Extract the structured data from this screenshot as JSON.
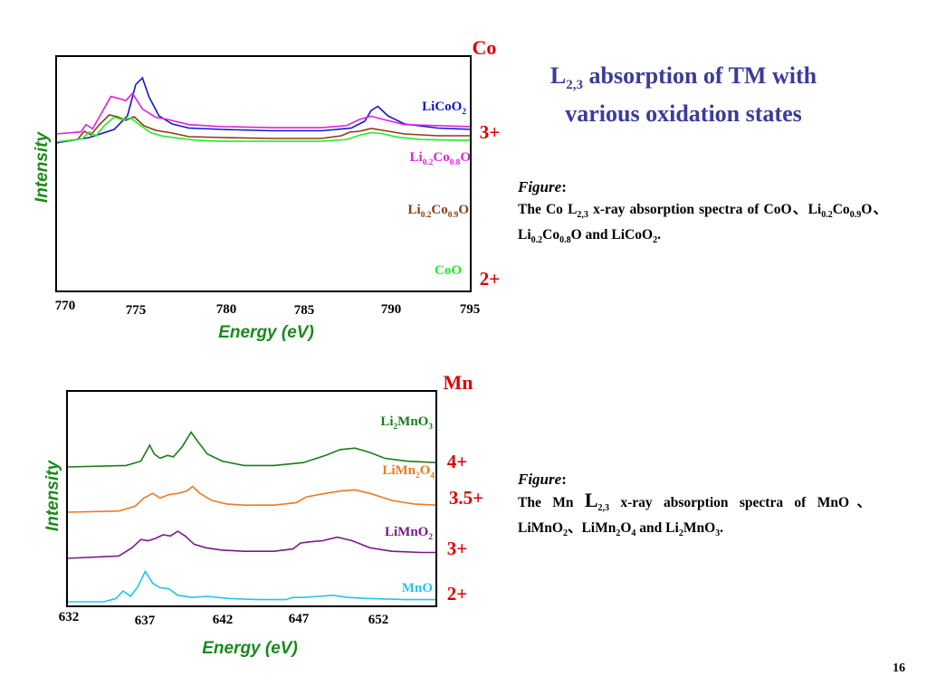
{
  "slide": {
    "title_pre": "L",
    "title_sub": "2,3",
    "title_post": " absorption of TM with",
    "title_line2": "various oxidation states",
    "page_number": "16"
  },
  "captions": [
    {
      "head": "Figure",
      "colon": ":",
      "segments": [
        "The Co L",
        "2,3",
        " x-ray absorption spectra of CoO、Li",
        "0.2",
        "Co",
        "0.9",
        "O、Li",
        "0.2",
        "Co",
        "0.8",
        "O and LiCoO",
        "2",
        "."
      ]
    },
    {
      "head": "Figure",
      "colon": ":",
      "segments": [
        "The Mn ",
        "L",
        "2,3",
        " x-ray absorption spectra of MnO、LiMnO",
        "2",
        "、LiMn",
        "2",
        "O",
        "4",
        " and Li",
        "2",
        "MnO",
        "3",
        "."
      ]
    }
  ],
  "colors": {
    "frame": "#000000",
    "axis_title": "#1a8a1a",
    "oxidation": "#e00000",
    "title": "#3b3b9e"
  },
  "chart_data": [
    {
      "type": "line",
      "element_label": "Co",
      "xlabel": "Energy  (eV)",
      "ylabel": "Intensity",
      "xlim": [
        770,
        795
      ],
      "xticks": [
        "770",
        "775",
        "780",
        "785",
        "790",
        "795"
      ],
      "oxidation_labels": [
        "3+",
        "2+"
      ],
      "series": [
        {
          "name_parts": [
            "LiCoO",
            "2"
          ],
          "color": "#1515d0",
          "x": [
            770,
            772,
            773.5,
            774.3,
            774.8,
            775.2,
            775.6,
            776.2,
            777.0,
            778.0,
            780.0,
            783.0,
            786.0,
            787.8,
            788.6,
            789.0,
            789.4,
            790.0,
            791.0,
            793.0,
            795.0
          ],
          "y": [
            0.52,
            0.56,
            0.62,
            0.72,
            0.95,
            1.0,
            0.86,
            0.72,
            0.66,
            0.63,
            0.62,
            0.61,
            0.61,
            0.63,
            0.68,
            0.76,
            0.79,
            0.72,
            0.66,
            0.63,
            0.62
          ]
        },
        {
          "name_parts": [
            "Li",
            "0.2",
            "Co",
            "0.8",
            "O"
          ],
          "color": "#e020e0",
          "x": [
            770,
            771.5,
            771.8,
            772.2,
            772.7,
            773.3,
            773.8,
            774.2,
            774.6,
            775.2,
            776.0,
            776.7,
            778.0,
            780.0,
            783.0,
            786.0,
            787.5,
            788.3,
            789.0,
            789.7,
            791.0,
            793.0,
            795.0
          ],
          "y": [
            0.36,
            0.38,
            0.45,
            0.41,
            0.55,
            0.72,
            0.7,
            0.68,
            0.75,
            0.6,
            0.52,
            0.5,
            0.45,
            0.43,
            0.42,
            0.42,
            0.44,
            0.5,
            0.53,
            0.5,
            0.45,
            0.44,
            0.43
          ]
        },
        {
          "name_parts": [
            "Li",
            "0.2",
            "Co",
            "0.9",
            "O"
          ],
          "color": "#8b3a14",
          "x": [
            770,
            771.3,
            771.7,
            772.1,
            772.6,
            773.2,
            773.7,
            774.2,
            774.7,
            775.3,
            776.0,
            777.0,
            778.0,
            780.0,
            783.0,
            786.0,
            787.2,
            787.7,
            788.3,
            789.0,
            789.7,
            791.0,
            793.0,
            795.0
          ],
          "y": [
            0.19,
            0.22,
            0.31,
            0.27,
            0.38,
            0.49,
            0.47,
            0.43,
            0.47,
            0.37,
            0.32,
            0.29,
            0.25,
            0.24,
            0.23,
            0.23,
            0.26,
            0.3,
            0.31,
            0.34,
            0.32,
            0.28,
            0.26,
            0.26
          ]
        },
        {
          "name_parts": [
            "CoO"
          ],
          "color": "#22ee22",
          "x": [
            770,
            771.6,
            772.0,
            772.4,
            772.9,
            773.5,
            774.0,
            774.5,
            775.1,
            775.7,
            776.4,
            777.2,
            778.5,
            780.0,
            783.0,
            786.0,
            787.5,
            788.3,
            789.0,
            789.6,
            790.5,
            792.0,
            795.0
          ],
          "y": [
            0.01,
            0.05,
            0.13,
            0.08,
            0.2,
            0.3,
            0.27,
            0.29,
            0.2,
            0.12,
            0.08,
            0.06,
            0.03,
            0.02,
            0.02,
            0.02,
            0.04,
            0.09,
            0.12,
            0.11,
            0.07,
            0.04,
            0.03
          ]
        }
      ]
    },
    {
      "type": "line",
      "element_label": "Mn",
      "xlabel": "Energy  (eV)",
      "ylabel": "Intensity",
      "xlim": [
        632,
        657
      ],
      "xticks": [
        "632",
        "637",
        "642",
        "647",
        "652"
      ],
      "oxidation_labels": [
        "4+",
        "3.5+",
        "3+",
        "2+"
      ],
      "series": [
        {
          "name_parts": [
            "Li",
            "2",
            "MnO",
            "3"
          ],
          "color": "#1a7d1a",
          "x": [
            632,
            636.0,
            637.0,
            637.6,
            637.9,
            638.3,
            638.8,
            639.2,
            639.8,
            640.4,
            640.9,
            641.5,
            642.5,
            644.0,
            646.0,
            648.0,
            649.5,
            650.5,
            651.5,
            652.5,
            653.5,
            655.0,
            657.0
          ],
          "y": [
            0.76,
            0.77,
            0.8,
            0.91,
            0.85,
            0.82,
            0.84,
            0.83,
            0.9,
            1.0,
            0.93,
            0.85,
            0.8,
            0.77,
            0.77,
            0.79,
            0.84,
            0.88,
            0.89,
            0.86,
            0.82,
            0.8,
            0.79
          ]
        },
        {
          "name_parts": [
            "LiMn",
            "2",
            "O",
            "4"
          ],
          "color": "#f07820",
          "x": [
            632,
            635.5,
            636.6,
            637.2,
            637.8,
            638.3,
            638.9,
            639.5,
            640.1,
            640.5,
            641.0,
            641.8,
            642.8,
            644.0,
            646.0,
            647.5,
            648.2,
            649.5,
            650.5,
            651.5,
            652.5,
            654.0,
            655.5,
            657.0
          ],
          "y": [
            0.54,
            0.55,
            0.59,
            0.66,
            0.7,
            0.66,
            0.69,
            0.7,
            0.72,
            0.76,
            0.7,
            0.64,
            0.61,
            0.6,
            0.6,
            0.62,
            0.67,
            0.7,
            0.72,
            0.73,
            0.7,
            0.64,
            0.61,
            0.6
          ]
        },
        {
          "name_parts": [
            "LiMnO",
            "2"
          ],
          "color": "#7a1a8a",
          "x": [
            632,
            635.5,
            636.4,
            637.0,
            637.5,
            638.0,
            638.5,
            639.0,
            639.5,
            640.0,
            640.6,
            641.4,
            642.5,
            644.0,
            646.0,
            647.3,
            647.8,
            648.4,
            649.3,
            650.3,
            651.3,
            652.5,
            654.0,
            656.0,
            657.0
          ],
          "y": [
            0.31,
            0.33,
            0.4,
            0.47,
            0.46,
            0.48,
            0.51,
            0.5,
            0.54,
            0.5,
            0.43,
            0.4,
            0.38,
            0.37,
            0.37,
            0.39,
            0.44,
            0.45,
            0.46,
            0.49,
            0.46,
            0.4,
            0.37,
            0.36,
            0.36
          ]
        },
        {
          "name_parts": [
            "MnO"
          ],
          "color": "#22c4ee",
          "x": [
            632,
            634.5,
            635.3,
            635.8,
            636.3,
            636.8,
            637.3,
            637.8,
            638.3,
            638.9,
            639.5,
            640.5,
            641.5,
            643.0,
            645.0,
            646.8,
            647.3,
            648.0,
            649.0,
            650.0,
            651.0,
            652.5,
            655.0,
            657.0
          ],
          "y": [
            0.0,
            0.0,
            0.03,
            0.1,
            0.05,
            0.14,
            0.28,
            0.17,
            0.13,
            0.12,
            0.06,
            0.04,
            0.05,
            0.03,
            0.02,
            0.02,
            0.04,
            0.04,
            0.05,
            0.06,
            0.04,
            0.03,
            0.02,
            0.02
          ]
        }
      ]
    }
  ]
}
